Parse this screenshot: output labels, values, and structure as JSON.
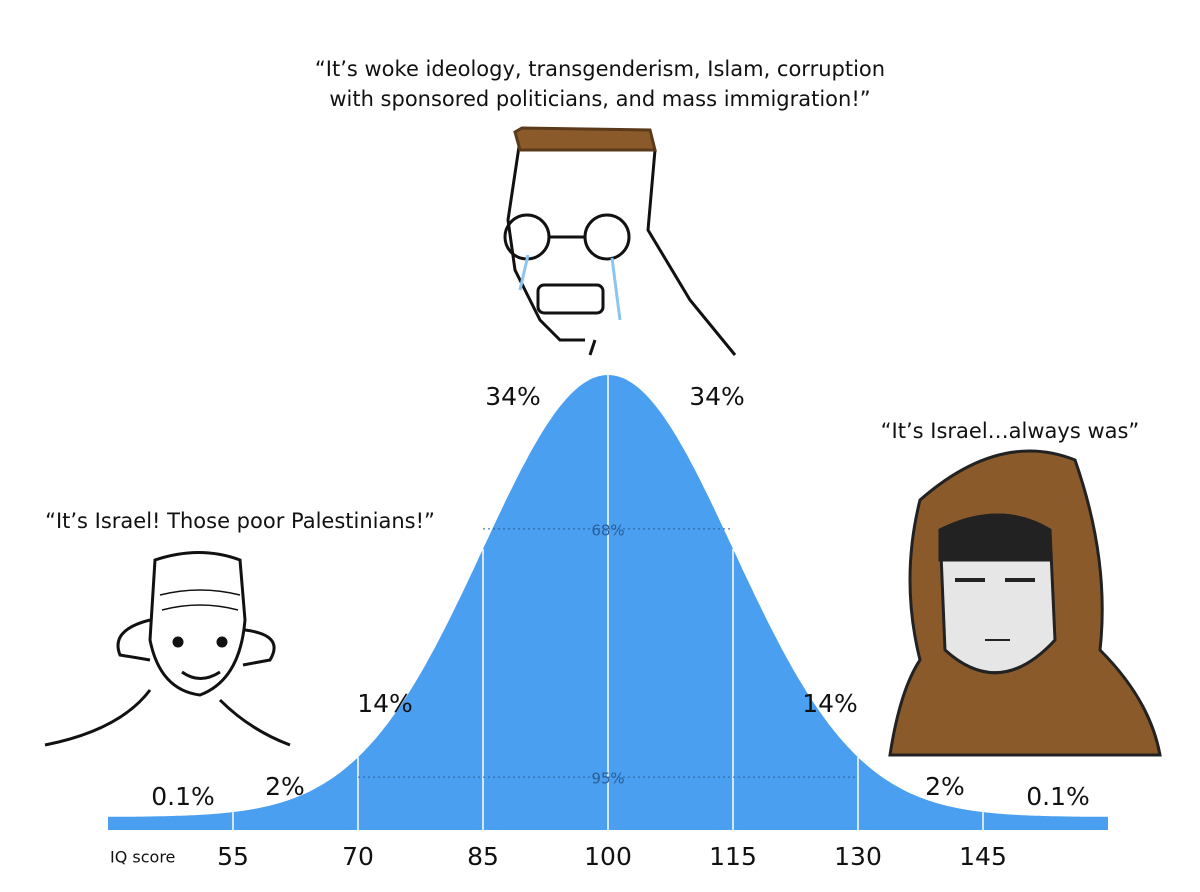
{
  "chart_data": {
    "type": "bell",
    "quotes": [
      [
        "“It’s woke ideology, transgenderism, Islam, corruption",
        "with sponsored politicians, and mass immigration!”"
      ],
      [
        "“It’s Israel! Those poor Palestinians!”"
      ],
      [
        "“It’s Israel…always was”"
      ]
    ],
    "x_label": "IQ score",
    "xlim": [
      40,
      160
    ],
    "xticks": [
      55,
      70,
      85,
      100,
      115,
      130,
      145
    ],
    "values": [
      0.1,
      2,
      14,
      34,
      34,
      14,
      2,
      0.1
    ],
    "value_labels": [
      "0.1%",
      "2%",
      "14%",
      "34%",
      "34%",
      "14%",
      "2%",
      "0.1%"
    ],
    "intervals": [
      {
        "value": 68,
        "label": "68%"
      },
      {
        "value": 95,
        "label": "95%"
      }
    ],
    "color": "#4a9ff0"
  }
}
